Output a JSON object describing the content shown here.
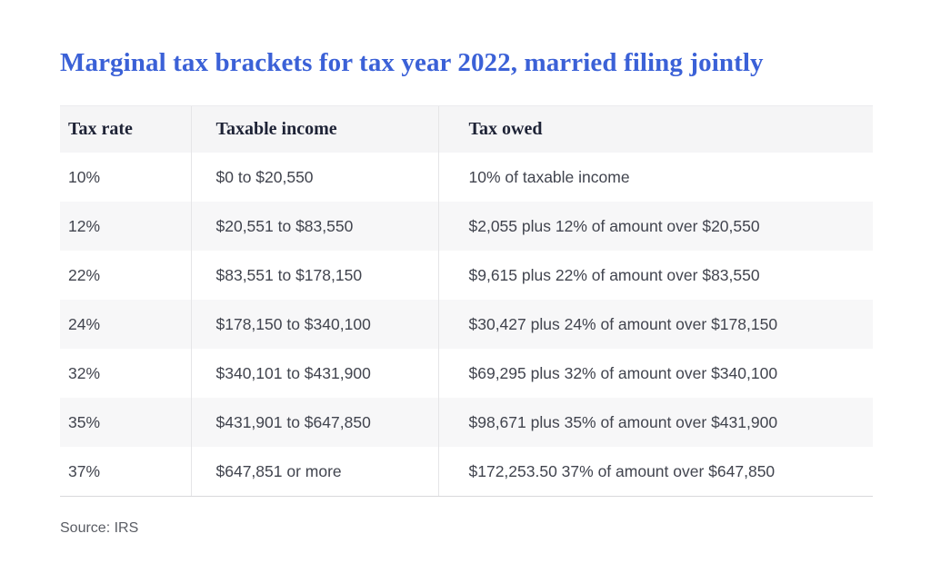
{
  "colors": {
    "title_blue": "#3B61D7",
    "header_text": "#1E2336",
    "body_text": "#41444E",
    "header_bg": "#F5F5F6",
    "row_alt_bg": "#F7F7F8",
    "divider": "#E5E5E7"
  },
  "source": {
    "text": "Source: IRS"
  },
  "chart_data": {
    "type": "table",
    "title": "Marginal tax brackets for tax year 2022, married filing jointly",
    "columns": [
      "Tax rate",
      "Taxable income",
      "Tax owed"
    ],
    "rows": [
      [
        "10%",
        "$0 to $20,550",
        "10% of taxable income"
      ],
      [
        "12%",
        "$20,551 to $83,550",
        "$2,055 plus 12% of amount over $20,550"
      ],
      [
        "22%",
        "$83,551 to $178,150",
        "$9,615 plus 22% of amount over $83,550"
      ],
      [
        "24%",
        "$178,150 to $340,100",
        "$30,427 plus 24% of amount over $178,150"
      ],
      [
        "32%",
        "$340,101 to $431,900",
        "$69,295 plus 32% of amount over $340,100"
      ],
      [
        "35%",
        "$431,901 to $647,850",
        "$98,671 plus 35% of amount over $431,900"
      ],
      [
        "37%",
        "$647,851 or more",
        "$172,253.50 37% of amount over $647,850"
      ]
    ],
    "source": "Source: IRS",
    "layout": {
      "striped": true,
      "column_dividers": true,
      "legend": "none",
      "grid": "off"
    }
  }
}
